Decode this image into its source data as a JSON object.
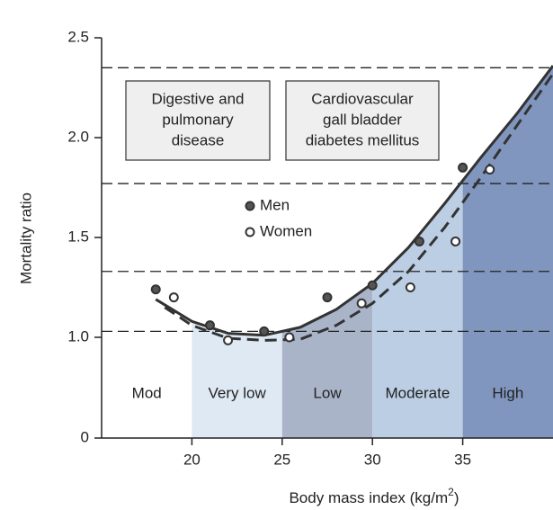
{
  "chart_data": {
    "type": "line",
    "ylabel": "Mortality ratio",
    "xlabel": [
      "Body mass index (kg/m",
      "2",
      ")"
    ],
    "xlim": [
      15,
      40
    ],
    "xticks": [
      20,
      25,
      30,
      35
    ],
    "ylim": [
      0,
      2.5
    ],
    "yticks": [
      0,
      {
        "value": 1,
        "label": "1.0"
      },
      1.5,
      {
        "value": 2,
        "label": "2.0"
      },
      2.5
    ],
    "axis_break": [
      0,
      1
    ],
    "hlines": [
      2.35,
      1.77,
      1.33,
      1.03
    ],
    "bands": [
      {
        "label": "Mod",
        "range": [
          15,
          20
        ],
        "color": null
      },
      {
        "label": "Very low",
        "range": [
          20,
          25
        ],
        "color": "#dfe9f4"
      },
      {
        "label": "Low",
        "range": [
          25,
          30
        ],
        "color": "#aab4c9"
      },
      {
        "label": "Moderate",
        "range": [
          30,
          35
        ],
        "color": "#bccee4"
      },
      {
        "label": "High",
        "range": [
          35,
          40
        ],
        "color": "#8196be"
      }
    ],
    "boxes": [
      [
        "Digestive and",
        "pulmonary",
        "disease"
      ],
      [
        "Cardiovascular",
        "gall bladder",
        "diabetes mellitus"
      ]
    ],
    "curves": [
      {
        "style": "solid",
        "x": [
          18,
          20,
          22,
          24,
          26,
          28,
          30,
          32,
          34,
          36,
          38,
          40
        ],
        "values": [
          1.19,
          1.08,
          1.02,
          1.01,
          1.05,
          1.14,
          1.27,
          1.45,
          1.67,
          1.9,
          2.12,
          2.36
        ]
      },
      {
        "style": "dashed",
        "x": [
          18.5,
          20,
          22,
          24,
          26,
          28,
          30,
          32,
          34,
          36,
          38,
          40
        ],
        "values": [
          1.15,
          1.06,
          0.99,
          0.97,
          0.98,
          1.06,
          1.17,
          1.33,
          1.55,
          1.8,
          2.06,
          2.32
        ]
      }
    ],
    "series": [
      {
        "name": "Men",
        "color": "#555555",
        "x": [
          18,
          21,
          24,
          27.5,
          30,
          32.6,
          35
        ],
        "values": [
          1.24,
          1.06,
          1.03,
          1.2,
          1.26,
          1.48,
          1.85
        ]
      },
      {
        "name": "Women",
        "color": "#ffffff",
        "x": [
          19,
          22,
          25.4,
          29.4,
          32.1,
          34.6,
          36.5
        ],
        "values": [
          1.2,
          0.97,
          1.0,
          1.17,
          1.25,
          1.48,
          1.84
        ]
      }
    ]
  }
}
